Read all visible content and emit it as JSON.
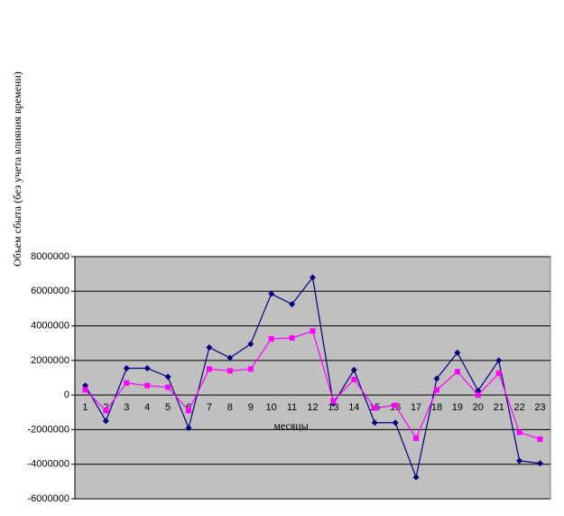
{
  "chart_data": {
    "type": "line",
    "y_label": "Объем сбыта (без учета влияния времени)",
    "x_label": "месяцы",
    "categories": [
      "1",
      "2",
      "3",
      "4",
      "5",
      "6",
      "7",
      "8",
      "9",
      "10",
      "11",
      "12",
      "13",
      "14",
      "15",
      "16",
      "17",
      "18",
      "19",
      "20",
      "21",
      "22",
      "23"
    ],
    "series": [
      {
        "color": "#000080",
        "marker": "diamond",
        "values": [
          550000,
          -1500000,
          1550000,
          1550000,
          1050000,
          -1900000,
          2750000,
          2150000,
          2950000,
          5850000,
          5250000,
          6800000,
          -500000,
          1450000,
          -1600000,
          -1600000,
          -4750000,
          950000,
          2450000,
          250000,
          2000000,
          -3800000,
          -3950000
        ]
      },
      {
        "color": "#ff00ff",
        "marker": "square",
        "values": [
          300000,
          -900000,
          700000,
          550000,
          450000,
          -900000,
          1500000,
          1400000,
          1500000,
          3250000,
          3300000,
          3700000,
          -350000,
          900000,
          -750000,
          -600000,
          -2500000,
          300000,
          1350000,
          0,
          1250000,
          -2150000,
          -2550000
        ]
      }
    ],
    "ylim": [
      -6000000,
      8000000
    ],
    "yticks": [
      -6000000,
      -4000000,
      -2000000,
      0,
      2000000,
      4000000,
      6000000,
      8000000
    ],
    "grid": true,
    "plot_background": "#c0c0c0"
  }
}
